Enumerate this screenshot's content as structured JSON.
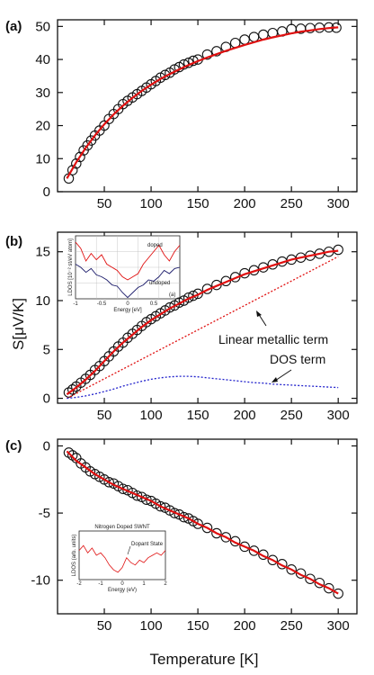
{
  "figure": {
    "xlabel": "Temperature [K]",
    "ylabel": "S[μV/K]"
  },
  "chart_data": [
    {
      "panel": "(a)",
      "type": "scatter",
      "xlim": [
        0,
        320
      ],
      "ylim": [
        0,
        52
      ],
      "xticks": [
        50,
        100,
        150,
        200,
        250,
        300
      ],
      "yticks": [
        0,
        10,
        20,
        30,
        40,
        50
      ],
      "series": [
        {
          "kind": "markers",
          "x": [
            12,
            16,
            20,
            24,
            28,
            32,
            36,
            40,
            45,
            50,
            55,
            60,
            65,
            70,
            75,
            80,
            85,
            90,
            95,
            100,
            105,
            110,
            115,
            120,
            125,
            130,
            135,
            140,
            145,
            150,
            160,
            170,
            180,
            190,
            200,
            210,
            220,
            230,
            240,
            250,
            260,
            270,
            280,
            290,
            298
          ],
          "y": [
            4,
            6.5,
            8.5,
            10.5,
            12.5,
            14,
            15.5,
            17,
            18.5,
            20,
            22,
            23.5,
            25,
            26.5,
            27.5,
            28.5,
            29.5,
            30.5,
            31.5,
            32.5,
            33.5,
            34.5,
            35.3,
            36,
            37,
            37.7,
            38.5,
            39,
            39.6,
            40,
            41.5,
            42.5,
            43.8,
            45,
            46,
            46.8,
            47.5,
            48,
            48.5,
            49.2,
            49.3,
            49.5,
            49.6,
            49.7,
            49.6
          ]
        },
        {
          "kind": "fit",
          "x": [
            10,
            20,
            30,
            40,
            50,
            60,
            70,
            80,
            90,
            100,
            110,
            120,
            130,
            140,
            150,
            160,
            170,
            180,
            190,
            200,
            210,
            220,
            230,
            240,
            250,
            260,
            270,
            280,
            290,
            300
          ],
          "y": [
            4,
            8.9,
            13.2,
            17,
            20.4,
            23.4,
            26,
            28.4,
            30.5,
            32.4,
            34.1,
            35.6,
            37,
            38.3,
            39.5,
            40.6,
            41.6,
            42.6,
            43.5,
            44.4,
            45.2,
            46,
            46.7,
            47.3,
            47.9,
            48.4,
            48.8,
            49.2,
            49.5,
            49.7
          ]
        }
      ]
    },
    {
      "panel": "(b)",
      "type": "scatter",
      "xlim": [
        0,
        320
      ],
      "ylim": [
        -0.5,
        17
      ],
      "xticks": [
        50,
        100,
        150,
        200,
        250,
        300
      ],
      "yticks": [
        0,
        5,
        10,
        15
      ],
      "annotations": [
        "Linear metallic term",
        "DOS term"
      ],
      "series": [
        {
          "kind": "markers",
          "x": [
            12,
            16,
            20,
            25,
            30,
            35,
            40,
            45,
            50,
            55,
            60,
            65,
            70,
            75,
            80,
            85,
            90,
            95,
            100,
            105,
            110,
            115,
            120,
            125,
            130,
            135,
            140,
            145,
            150,
            160,
            170,
            180,
            190,
            200,
            210,
            220,
            230,
            240,
            250,
            260,
            270,
            280,
            290,
            300
          ],
          "y": [
            0.6,
            0.9,
            1.2,
            1.6,
            2,
            2.4,
            2.9,
            3.3,
            3.8,
            4.3,
            4.8,
            5.3,
            5.7,
            6.2,
            6.6,
            7,
            7.4,
            7.8,
            8.1,
            8.4,
            8.7,
            9,
            9.3,
            9.5,
            9.8,
            10,
            10.3,
            10.5,
            10.7,
            11.2,
            11.6,
            12,
            12.4,
            12.8,
            13.1,
            13.4,
            13.7,
            14,
            14.2,
            14.4,
            14.6,
            14.8,
            15,
            15.2
          ]
        },
        {
          "kind": "fit",
          "x": [
            10,
            20,
            30,
            40,
            50,
            60,
            70,
            80,
            90,
            100,
            110,
            120,
            130,
            140,
            150,
            160,
            170,
            180,
            190,
            200,
            210,
            220,
            230,
            240,
            250,
            260,
            270,
            280,
            290,
            300
          ],
          "y": [
            0.4,
            1.1,
            1.9,
            2.8,
            3.8,
            4.8,
            5.7,
            6.5,
            7.3,
            8,
            8.6,
            9.2,
            9.7,
            10.2,
            10.6,
            11.1,
            11.5,
            11.9,
            12.3,
            12.7,
            13,
            13.3,
            13.6,
            13.9,
            14.2,
            14.4,
            14.6,
            14.8,
            15,
            15.1
          ]
        },
        {
          "kind": "linear",
          "x": [
            10,
            300
          ],
          "y": [
            0,
            14.5
          ]
        },
        {
          "kind": "dos",
          "x": [
            10,
            20,
            30,
            40,
            50,
            60,
            70,
            80,
            90,
            100,
            110,
            120,
            130,
            140,
            150,
            160,
            170,
            180,
            190,
            200,
            210,
            220,
            230,
            240,
            250,
            260,
            270,
            280,
            290,
            300
          ],
          "y": [
            0,
            0.1,
            0.25,
            0.45,
            0.7,
            0.95,
            1.25,
            1.5,
            1.75,
            1.95,
            2.1,
            2.2,
            2.25,
            2.25,
            2.2,
            2.1,
            2,
            1.9,
            1.8,
            1.7,
            1.6,
            1.55,
            1.45,
            1.4,
            1.35,
            1.3,
            1.25,
            1.2,
            1.15,
            1.1
          ]
        }
      ],
      "inset": {
        "labels": [
          "doped",
          "undoped",
          "Energy [eV]",
          "LDOS [10⁻² st/eV atom]",
          "(a)"
        ],
        "xticks": [
          "-1",
          "-0.5",
          "0",
          "0.5",
          "1"
        ],
        "doped": [
          [
            -1,
            0.9
          ],
          [
            -0.9,
            0.8
          ],
          [
            -0.8,
            0.6
          ],
          [
            -0.7,
            0.72
          ],
          [
            -0.6,
            0.62
          ],
          [
            -0.5,
            0.7
          ],
          [
            -0.4,
            0.55
          ],
          [
            -0.3,
            0.5
          ],
          [
            -0.2,
            0.45
          ],
          [
            -0.1,
            0.35
          ],
          [
            0,
            0.3
          ],
          [
            0.1,
            0.35
          ],
          [
            0.2,
            0.4
          ],
          [
            0.3,
            0.55
          ],
          [
            0.4,
            0.65
          ],
          [
            0.5,
            0.75
          ],
          [
            0.6,
            0.85
          ],
          [
            0.7,
            0.7
          ],
          [
            0.8,
            0.6
          ],
          [
            0.9,
            0.75
          ],
          [
            1,
            0.85
          ]
        ],
        "undoped": [
          [
            -1,
            0.55
          ],
          [
            -0.9,
            0.5
          ],
          [
            -0.8,
            0.42
          ],
          [
            -0.7,
            0.48
          ],
          [
            -0.6,
            0.38
          ],
          [
            -0.5,
            0.35
          ],
          [
            -0.4,
            0.3
          ],
          [
            -0.3,
            0.22
          ],
          [
            -0.2,
            0.2
          ],
          [
            -0.1,
            0.1
          ],
          [
            0,
            0.02
          ],
          [
            0.1,
            0.1
          ],
          [
            0.2,
            0.18
          ],
          [
            0.3,
            0.22
          ],
          [
            0.4,
            0.3
          ],
          [
            0.5,
            0.28
          ],
          [
            0.6,
            0.35
          ],
          [
            0.7,
            0.45
          ],
          [
            0.8,
            0.4
          ],
          [
            0.9,
            0.48
          ],
          [
            1,
            0.5
          ]
        ]
      }
    },
    {
      "panel": "(c)",
      "type": "scatter",
      "xlim": [
        0,
        320
      ],
      "ylim": [
        -12.5,
        0.5
      ],
      "xticks": [
        50,
        100,
        150,
        200,
        250,
        300
      ],
      "yticks": [
        0,
        -5,
        -10
      ],
      "series": [
        {
          "kind": "markers",
          "x": [
            12,
            16,
            20,
            25,
            30,
            35,
            40,
            45,
            50,
            55,
            60,
            65,
            70,
            75,
            80,
            85,
            90,
            95,
            100,
            105,
            110,
            115,
            120,
            125,
            130,
            135,
            140,
            145,
            150,
            160,
            170,
            180,
            190,
            200,
            210,
            220,
            230,
            240,
            250,
            260,
            270,
            280,
            290,
            300
          ],
          "y": [
            -0.5,
            -0.7,
            -0.9,
            -1.3,
            -1.6,
            -1.9,
            -2.1,
            -2.3,
            -2.5,
            -2.7,
            -2.8,
            -3,
            -3.2,
            -3.3,
            -3.5,
            -3.7,
            -3.8,
            -4,
            -4.1,
            -4.3,
            -4.5,
            -4.6,
            -4.8,
            -5,
            -5.1,
            -5.3,
            -5.4,
            -5.6,
            -5.8,
            -6.1,
            -6.5,
            -6.8,
            -7.1,
            -7.5,
            -7.8,
            -8.1,
            -8.5,
            -8.8,
            -9.2,
            -9.5,
            -9.9,
            -10.2,
            -10.6,
            -11
          ]
        },
        {
          "kind": "fit",
          "x": [
            10,
            20,
            30,
            40,
            50,
            60,
            70,
            80,
            90,
            100,
            110,
            120,
            130,
            140,
            150,
            160,
            170,
            180,
            190,
            200,
            210,
            220,
            230,
            240,
            250,
            260,
            270,
            280,
            290,
            300
          ],
          "y": [
            -0.4,
            -1.1,
            -1.6,
            -2.1,
            -2.5,
            -2.9,
            -3.2,
            -3.5,
            -3.8,
            -4.1,
            -4.5,
            -4.8,
            -5.1,
            -5.4,
            -5.8,
            -6.1,
            -6.5,
            -6.8,
            -7.2,
            -7.5,
            -7.8,
            -8.2,
            -8.5,
            -8.9,
            -9.2,
            -9.6,
            -9.9,
            -10.3,
            -10.6,
            -11
          ]
        }
      ],
      "inset": {
        "labels": [
          "Nitrogen Doped SWNT",
          "Dopant State",
          "Energy (eV)",
          "LDOS (arb. units)"
        ],
        "xticks": [
          "-2",
          "-1",
          "0",
          "1",
          "2"
        ],
        "curve": [
          [
            -2,
            0.6
          ],
          [
            -1.8,
            0.7
          ],
          [
            -1.6,
            0.55
          ],
          [
            -1.4,
            0.65
          ],
          [
            -1.2,
            0.5
          ],
          [
            -1,
            0.55
          ],
          [
            -0.8,
            0.45
          ],
          [
            -0.6,
            0.3
          ],
          [
            -0.4,
            0.2
          ],
          [
            -0.2,
            0.15
          ],
          [
            0,
            0.25
          ],
          [
            0.2,
            0.45
          ],
          [
            0.4,
            0.35
          ],
          [
            0.6,
            0.3
          ],
          [
            0.8,
            0.4
          ],
          [
            1,
            0.35
          ],
          [
            1.2,
            0.45
          ],
          [
            1.4,
            0.5
          ],
          [
            1.6,
            0.55
          ],
          [
            1.8,
            0.5
          ],
          [
            2,
            0.6
          ]
        ]
      }
    }
  ]
}
